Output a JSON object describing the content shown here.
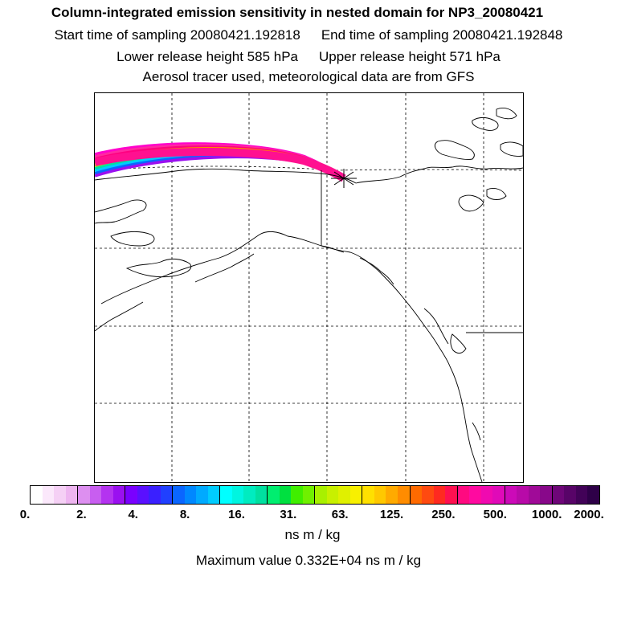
{
  "title": "Column-integrated emission sensitivity in nested domain for NP3_20080421",
  "start_time": "Start time of sampling 20080421.192818",
  "end_time": "End time of sampling 20080421.192848",
  "lower_height": "Lower release height  585 hPa",
  "upper_height": "Upper release height  571 hPa",
  "tracer_info": "Aerosol tracer used, meteorological data are from GFS",
  "colorbar": {
    "tick_labels": [
      "0.",
      "2.",
      "4.",
      "8.",
      "16.",
      "31.",
      "63.",
      "125.",
      "250.",
      "500.",
      "1000.",
      "2000."
    ],
    "colors": [
      "#ffffff",
      "#fbe8fb",
      "#f5d0f5",
      "#eeb5f0",
      "#dd8ff0",
      "#c85ef0",
      "#b433f0",
      "#9a10f0",
      "#7a00ff",
      "#5a10ff",
      "#3a20ff",
      "#2040ff",
      "#0a66ff",
      "#0088ff",
      "#00aaff",
      "#00ccff",
      "#00ffff",
      "#00f5e0",
      "#00ecc0",
      "#00e0a0",
      "#00ee70",
      "#00e040",
      "#40ee00",
      "#70f000",
      "#a8f000",
      "#c8f000",
      "#e0f000",
      "#f8f000",
      "#ffe000",
      "#ffc800",
      "#ffaa00",
      "#ff8c00",
      "#ff6a00",
      "#ff4a10",
      "#ff2a20",
      "#ff1050",
      "#ff0a80",
      "#ff0aa0",
      "#f00ab0",
      "#e00ab8",
      "#cc0ab8",
      "#b80aa8",
      "#a00a98",
      "#88088a",
      "#6e0678",
      "#580468",
      "#420258",
      "#2e0048"
    ]
  },
  "units": "ns m / kg",
  "max_value": "Maximum value  0.332E+04 ns m / kg",
  "map": {
    "receptor_marker": "asterisk",
    "plume_colors": [
      "#ff00cc",
      "#ff2aa0",
      "#ff0080",
      "#ff8c00",
      "#ffe000",
      "#a8f000",
      "#00e0a0",
      "#00ccff",
      "#0a66ff",
      "#9a10f0"
    ]
  }
}
